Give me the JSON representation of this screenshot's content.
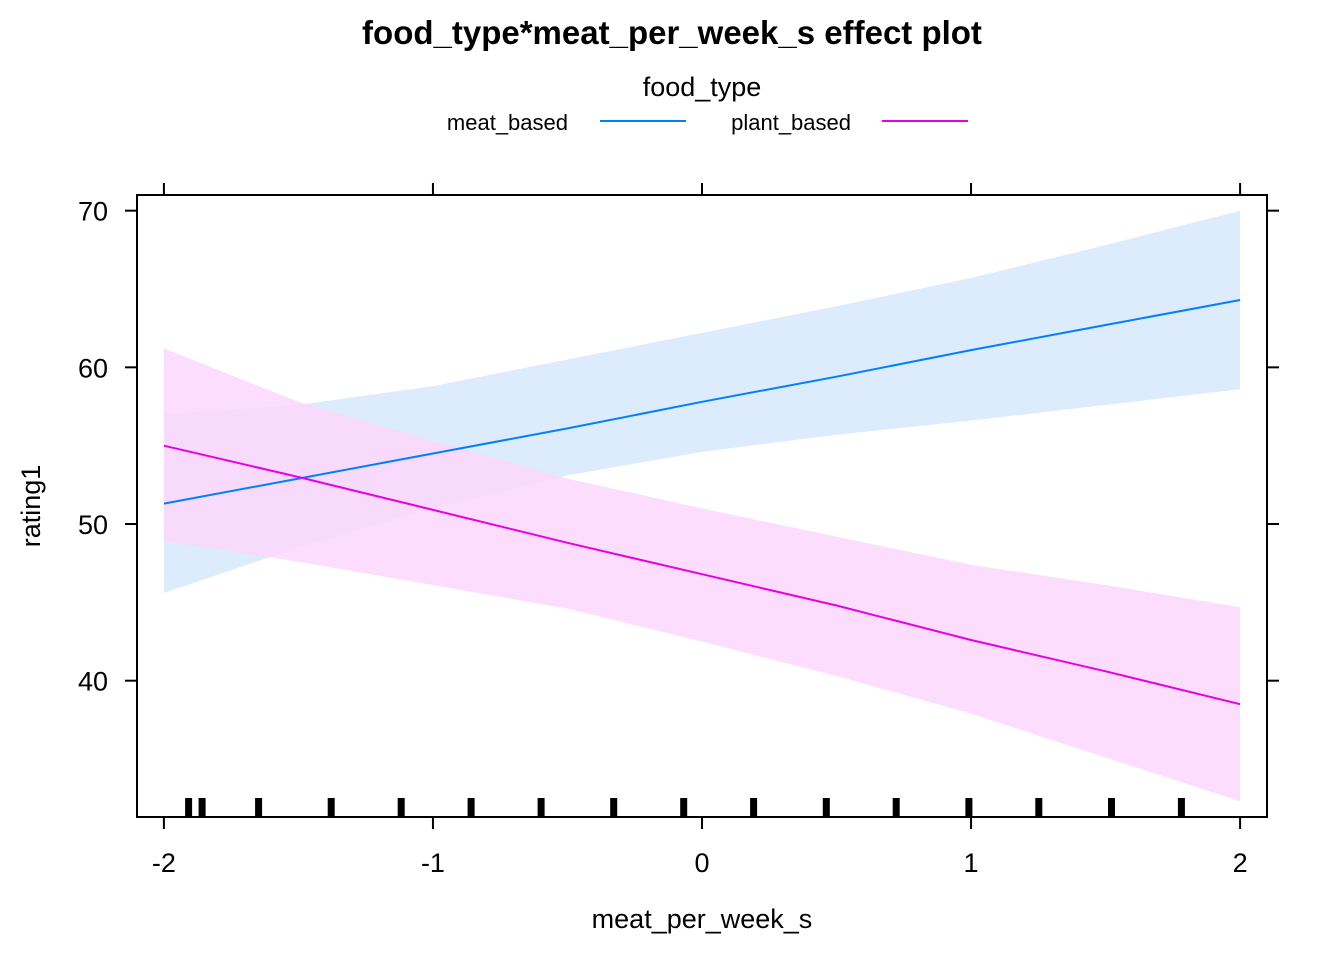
{
  "chart_data": {
    "type": "line",
    "title": "food_type*meat_per_week_s effect plot",
    "legend": {
      "title": "food_type",
      "placement": "top"
    },
    "xlabel": "meat_per_week_s",
    "ylabel": "rating1",
    "xlim": [
      -2.1,
      2.1
    ],
    "ylim": [
      31.3,
      71.0
    ],
    "x_ticks": [
      -2,
      -1,
      0,
      1,
      2
    ],
    "y_ticks": [
      40,
      50,
      60,
      70
    ],
    "grid": false,
    "series": [
      {
        "name": "meat_based",
        "color": "#0080ff",
        "band_color": "#d6e9fc",
        "x": [
          -2,
          -1.5,
          -1,
          -0.5,
          0,
          0.5,
          1,
          1.5,
          2
        ],
        "y": [
          51.3,
          52.9,
          54.5,
          56.1,
          57.8,
          59.4,
          61.1,
          62.7,
          64.3
        ],
        "lower": [
          45.6,
          48.5,
          51.0,
          53.1,
          54.6,
          55.7,
          56.6,
          57.6,
          58.6
        ],
        "upper": [
          57.0,
          57.6,
          58.8,
          60.5,
          62.2,
          63.9,
          65.7,
          67.8,
          70.0
        ]
      },
      {
        "name": "plant_based",
        "color": "#e600e6",
        "band_color": "#fdd7fd",
        "x": [
          -2,
          -1.5,
          -1,
          -0.5,
          0,
          0.5,
          1,
          1.5,
          2
        ],
        "y": [
          55.0,
          53.0,
          50.9,
          48.8,
          46.8,
          44.8,
          42.6,
          40.6,
          38.5
        ],
        "lower": [
          48.9,
          47.6,
          46.1,
          44.6,
          42.5,
          40.3,
          37.9,
          35.1,
          32.3
        ],
        "upper": [
          61.2,
          57.8,
          55.3,
          52.9,
          51.0,
          49.2,
          47.4,
          46.1,
          44.7
        ]
      }
    ],
    "rug_x": [
      -1.91,
      -1.86,
      -1.65,
      -1.38,
      -1.12,
      -0.86,
      -0.6,
      -0.33,
      -0.07,
      0.19,
      0.46,
      0.72,
      0.99,
      1.25,
      1.52,
      1.78
    ]
  }
}
